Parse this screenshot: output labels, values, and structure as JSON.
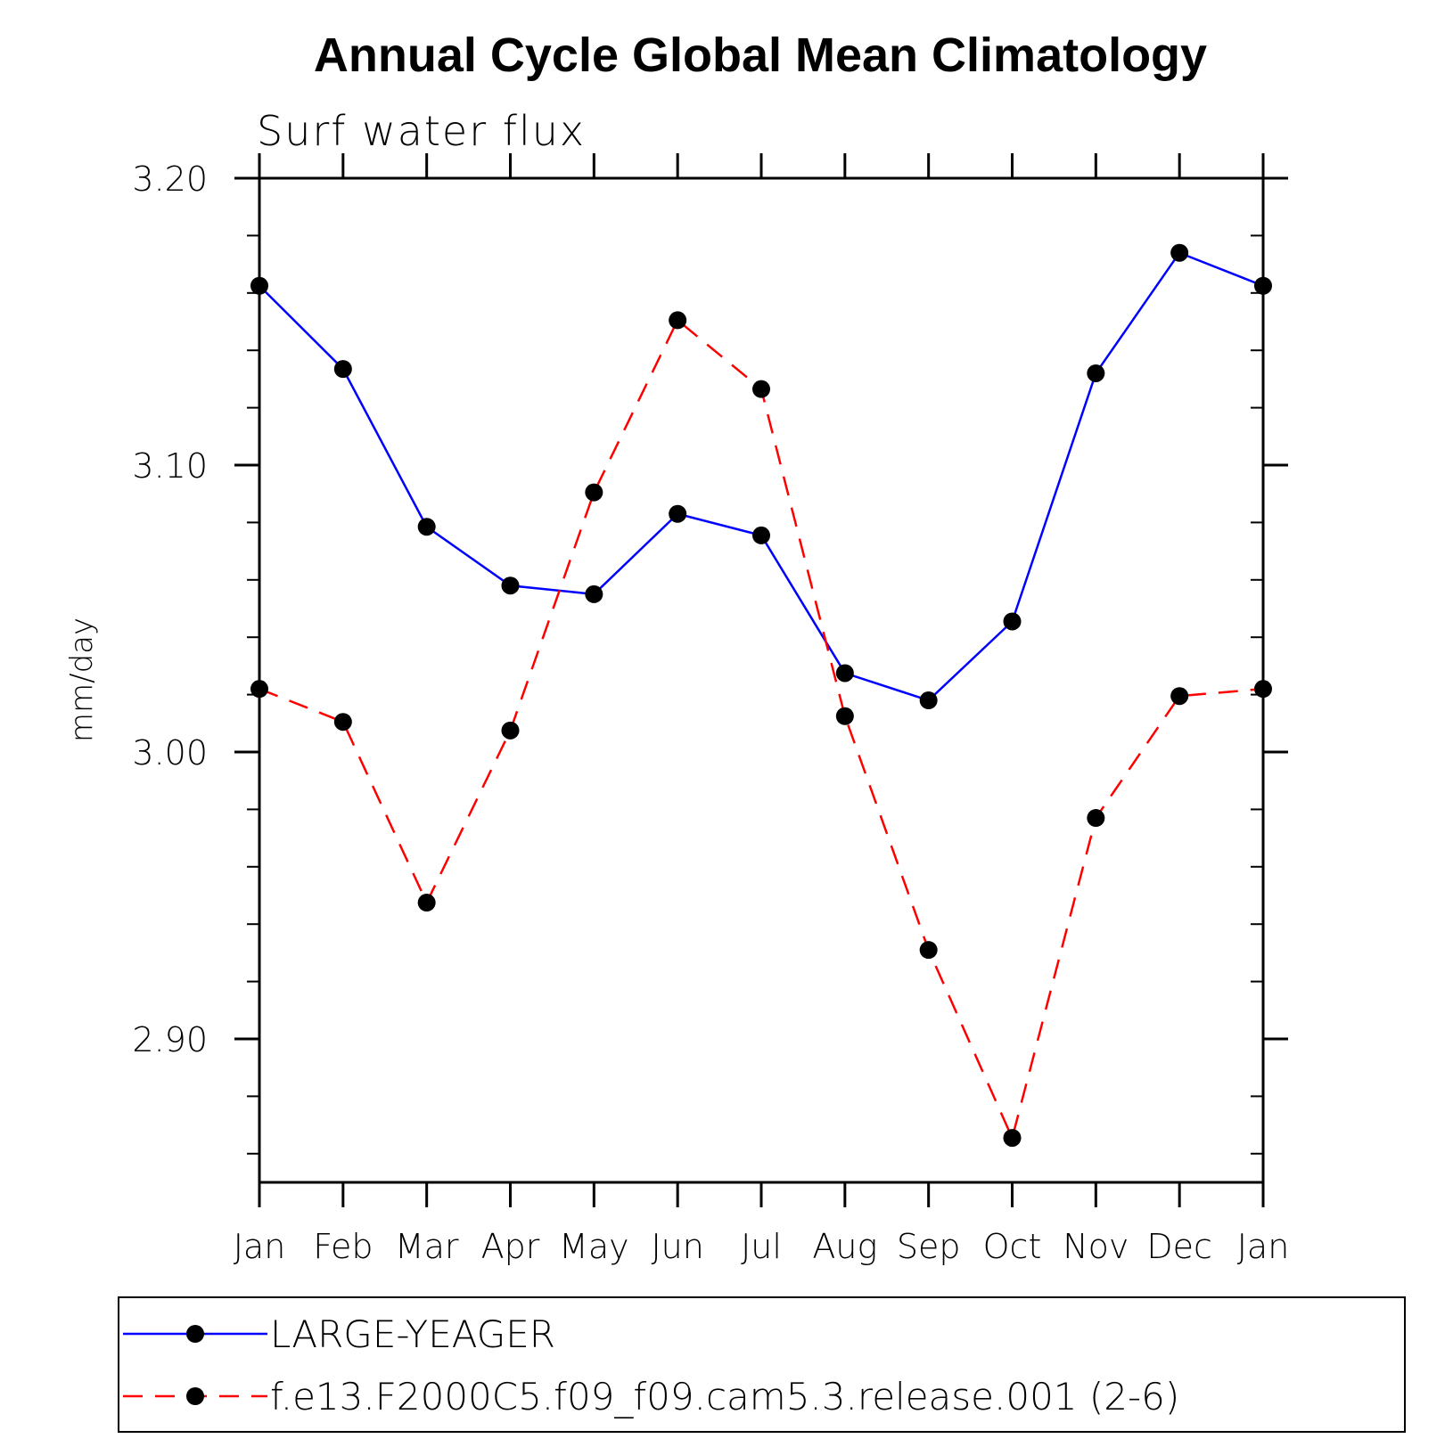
{
  "chart_data": {
    "type": "line",
    "title": "Annual Cycle Global Mean Climatology",
    "subtitle": "Surf water flux",
    "xlabel": "",
    "ylabel": "mm/day",
    "categories": [
      "Jan",
      "Feb",
      "Mar",
      "Apr",
      "May",
      "Jun",
      "Jul",
      "Aug",
      "Sep",
      "Oct",
      "Nov",
      "Dec",
      "Jan"
    ],
    "ylim": [
      2.85,
      3.2
    ],
    "yticks_major": [
      2.9,
      3.0,
      3.1,
      3.2
    ],
    "ytick_labels": [
      "2.90",
      "3.00",
      "3.10",
      "3.20"
    ],
    "yticks_minor_step": 0.02,
    "series": [
      {
        "name": "LARGE-YEAGER",
        "color": "#0000ff",
        "dash": "solid",
        "marker": "circle",
        "values": [
          3.1625,
          3.1335,
          3.0785,
          3.058,
          3.055,
          3.083,
          3.0755,
          3.0275,
          3.018,
          3.0455,
          3.132,
          3.174,
          3.1625
        ]
      },
      {
        "name": "f.e13.F2000C5.f09_f09.cam5.3.release.001 (2-6)",
        "color": "#ff0000",
        "dash": "dashed",
        "marker": "circle",
        "values": [
          3.022,
          3.0105,
          2.9475,
          3.0075,
          3.0905,
          3.1505,
          3.1265,
          3.0125,
          2.931,
          2.8655,
          2.977,
          3.0195,
          3.022
        ]
      }
    ],
    "legend": {
      "position": "bottom",
      "entries": [
        "LARGE-YEAGER",
        "f.e13.F2000C5.f09_f09.cam5.3.release.001 (2-6)"
      ]
    },
    "grid": false
  }
}
